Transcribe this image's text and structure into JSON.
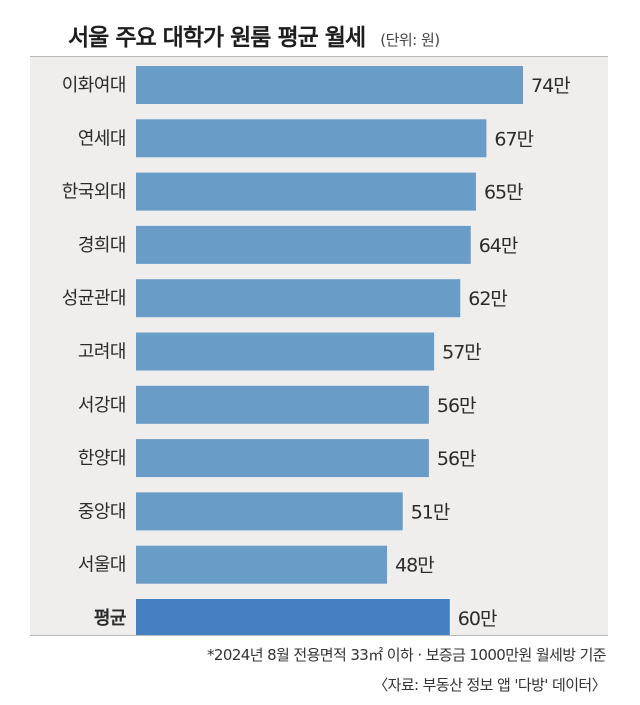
{
  "header": {
    "title": "서울 주요 대학가 원룸 평균 월세",
    "unit": "(단위: 원)"
  },
  "chart_data": {
    "type": "bar",
    "orientation": "horizontal",
    "categories": [
      "이화여대",
      "연세대",
      "한국외대",
      "경희대",
      "성균관대",
      "고려대",
      "서강대",
      "한양대",
      "중앙대",
      "서울대",
      "평균"
    ],
    "values": [
      74,
      67,
      65,
      64,
      62,
      57,
      56,
      56,
      51,
      48,
      60
    ],
    "value_labels": [
      "74만",
      "67만",
      "65만",
      "64만",
      "62만",
      "57만",
      "56만",
      "56만",
      "51만",
      "48만",
      "60만"
    ],
    "highlight_index": 10,
    "title": "서울 주요 대학가 원룸 평균 월세",
    "unit": "(단위: 원)",
    "xlim": [
      0,
      80
    ],
    "grid": false,
    "colors": {
      "bar": "#6a9cc8",
      "highlight": "#4581c1",
      "background": "#efeeec"
    }
  },
  "footer": {
    "note": "*2024년 8월 전용면적 33㎡ 이하 · 보증금 1000만원 월세방 기준",
    "source": "〈자료: 부동산 정보 앱 '다방' 데이터〉"
  }
}
